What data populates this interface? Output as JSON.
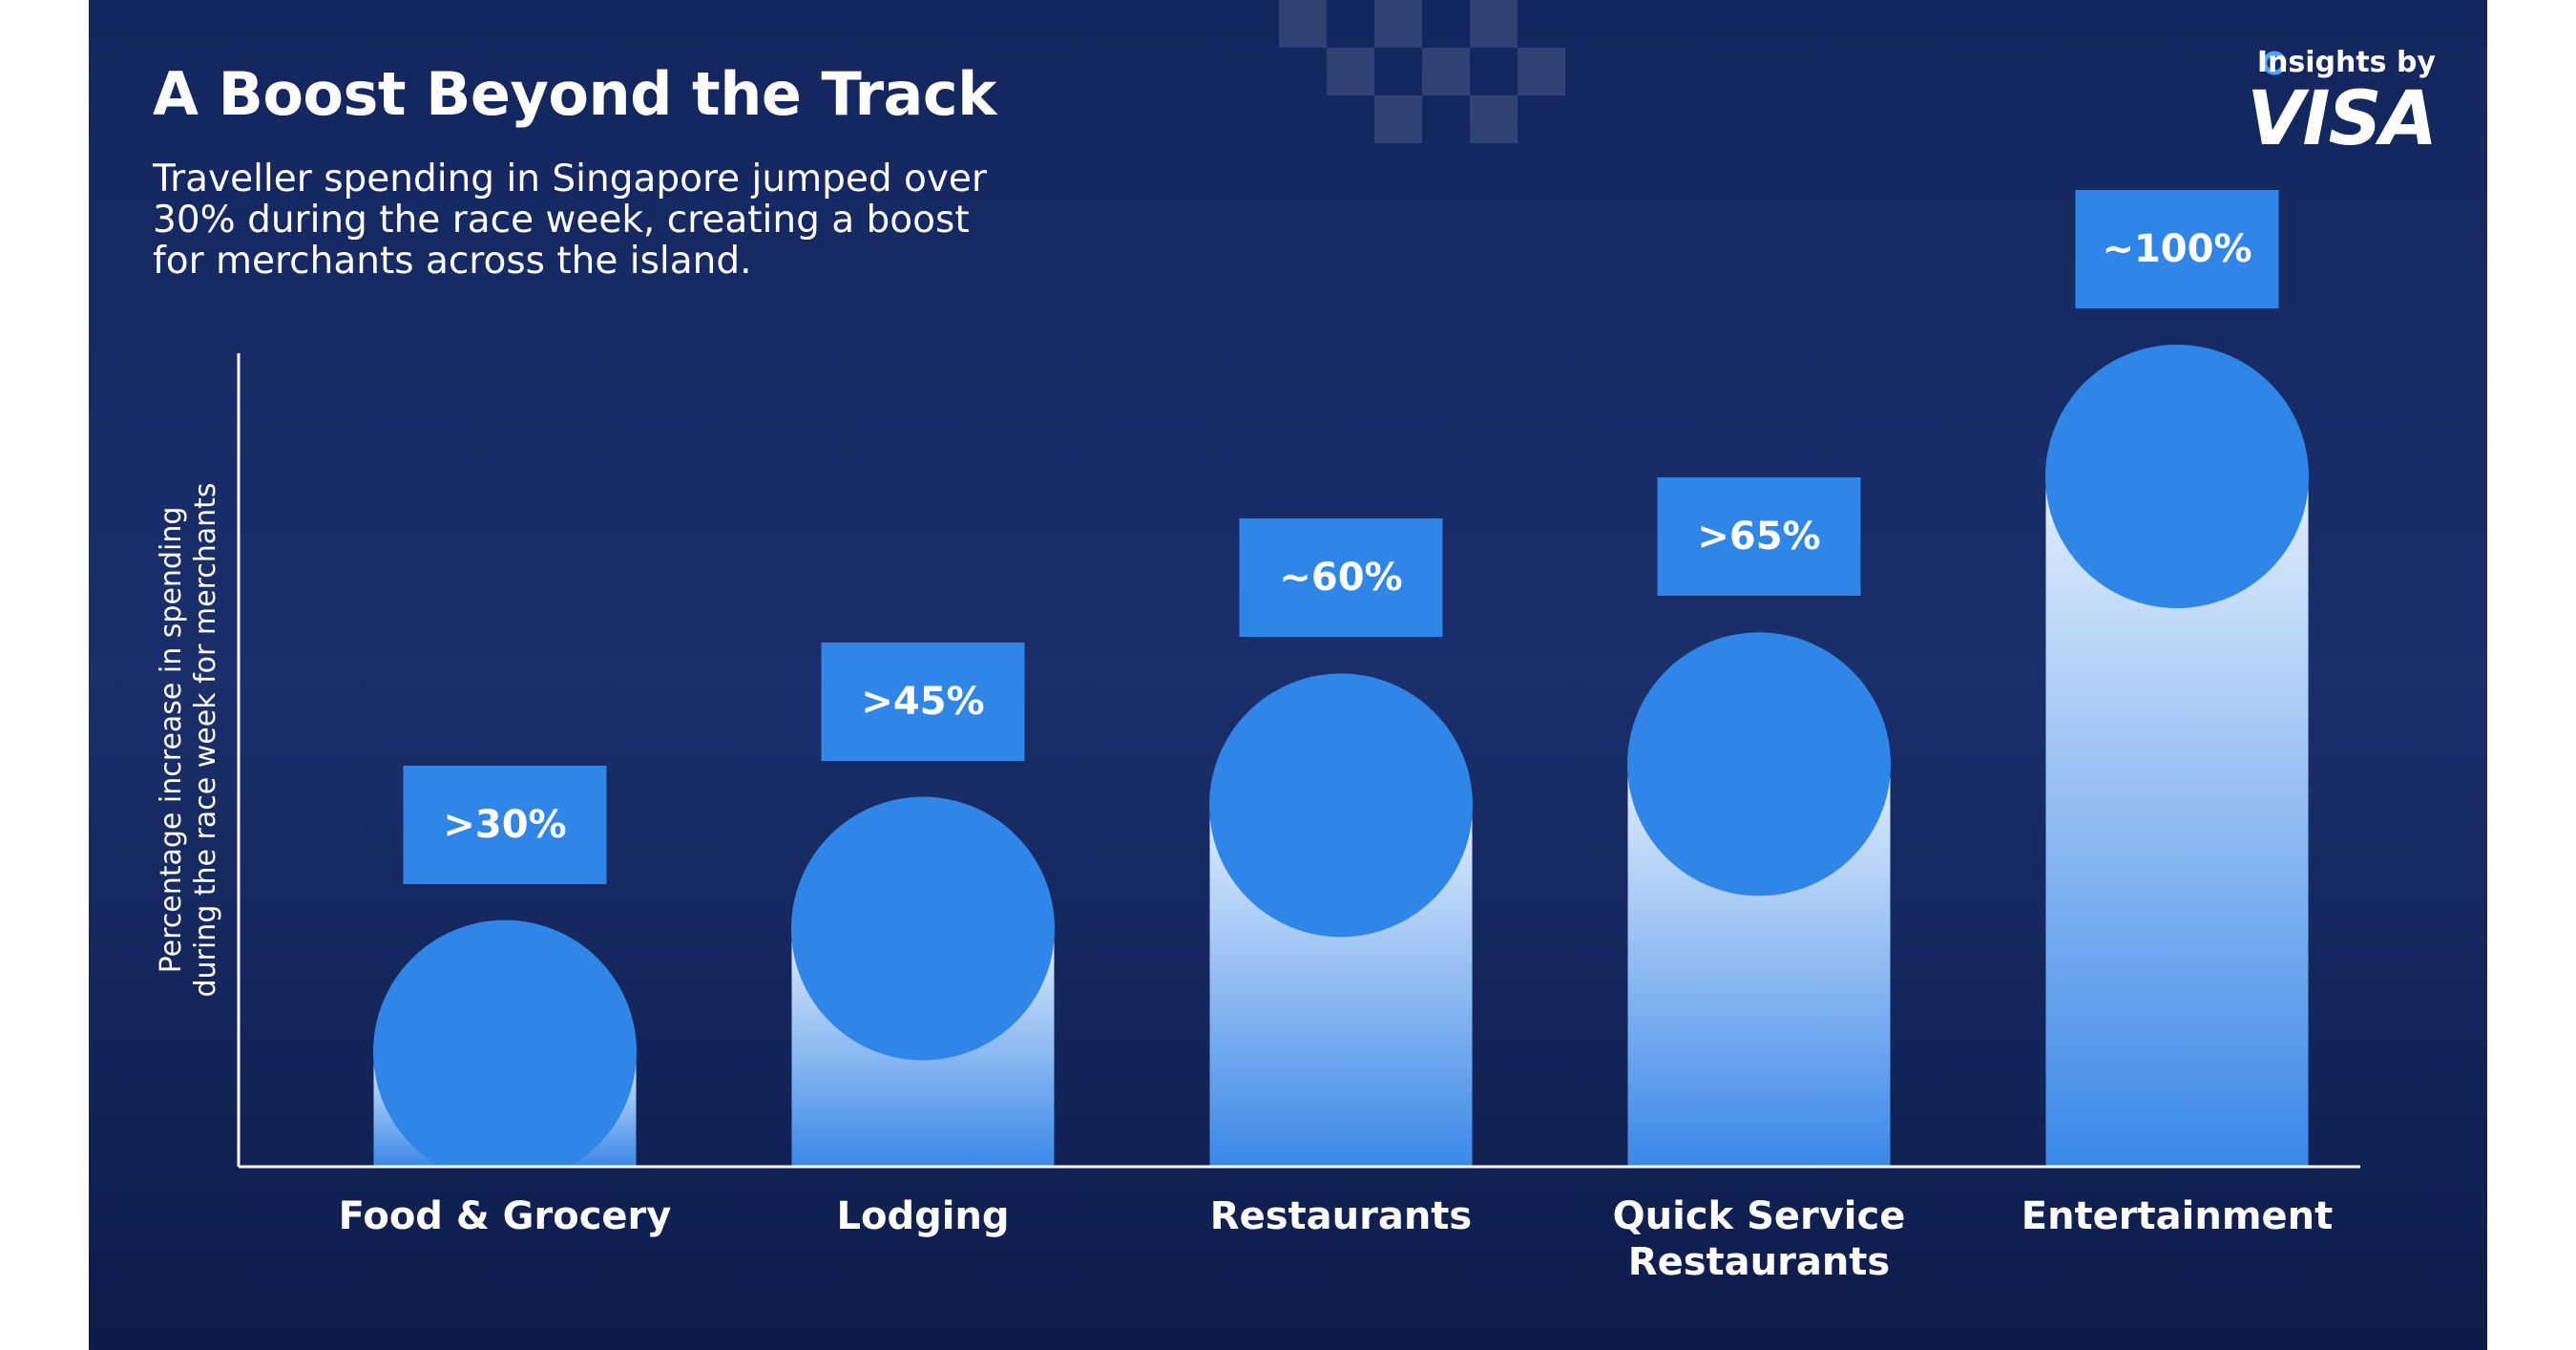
{
  "chart_data": {
    "type": "bar",
    "title": "A Boost Beyond the Track",
    "subtitle": "Traveller spending in Singapore jumped over 30% during the race week, creating a boost for merchants across the island.",
    "y_label": "Percentage increase in spending during the race week for merchants",
    "brand_prefix": "Insights by",
    "brand": "VISA",
    "categories": [
      "Food & Grocery",
      "Lodging",
      "Restaurants",
      "Quick Service Restaurants",
      "Entertainment"
    ],
    "values": [
      30,
      45,
      60,
      65,
      100
    ],
    "value_labels": [
      ">30%",
      ">45%",
      "~60%",
      ">65%",
      "~100%"
    ],
    "color": "#2f86e6",
    "ylim": [
      0,
      100
    ]
  }
}
